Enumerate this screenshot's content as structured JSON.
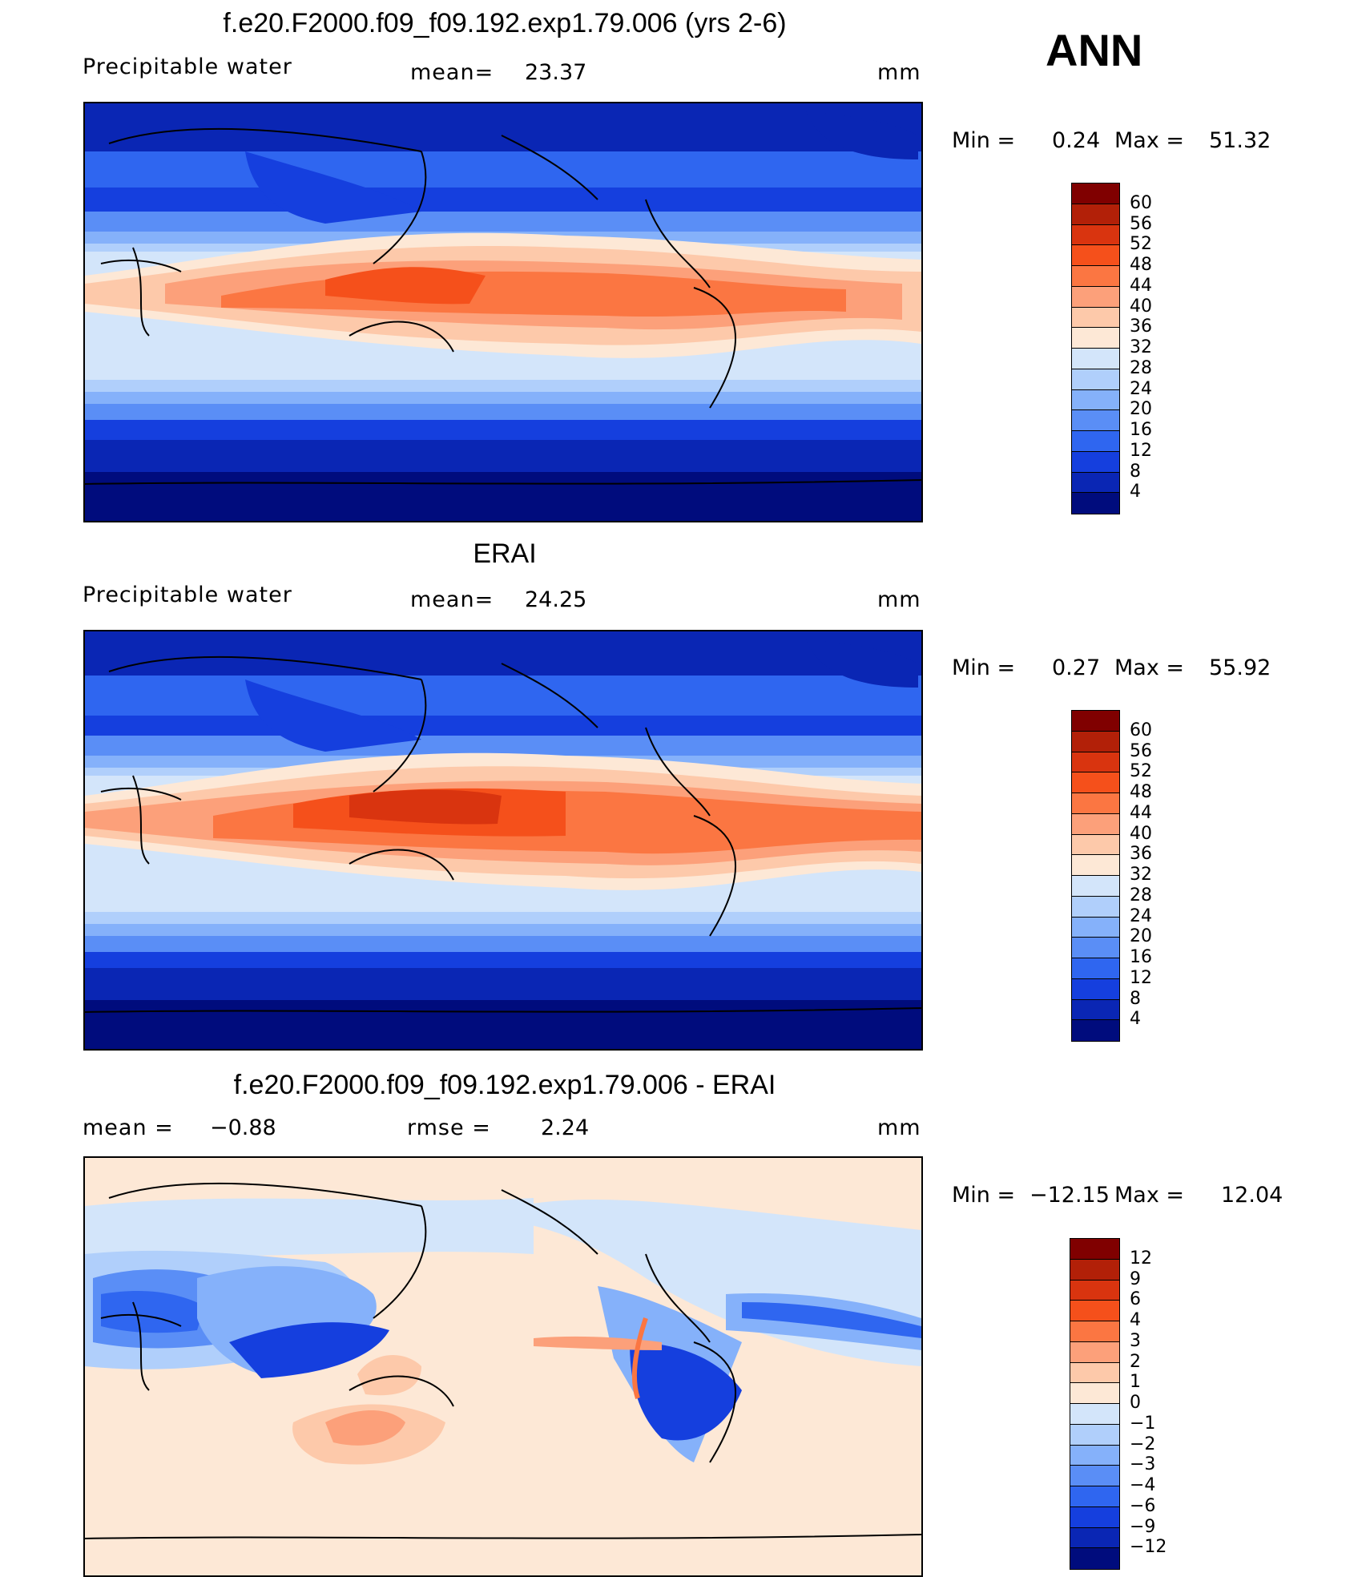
{
  "season": "ANN",
  "panels": [
    {
      "title": "f.e20.F2000.f09_f09.192.exp1.79.006 (yrs 2-6)",
      "left_label": "Precipitable  water",
      "center_label": "mean=",
      "center_value": "23.37",
      "units": "mm",
      "min_label": "Min  =",
      "min_value": "0.24",
      "max_label": "Max  =",
      "max_value": "51.32",
      "colorbar": {
        "ticks": [
          "60",
          "56",
          "52",
          "48",
          "44",
          "40",
          "36",
          "32",
          "28",
          "24",
          "20",
          "16",
          "12",
          "8",
          "4"
        ],
        "colors": [
          "#800000",
          "#b22008",
          "#d9340f",
          "#f5501b",
          "#fb7642",
          "#fca07a",
          "#fdc9aa",
          "#fde8d6",
          "#d3e5fa",
          "#b0cffb",
          "#85b1fa",
          "#5a8ef6",
          "#2f66f0",
          "#153fde",
          "#0a26b4",
          "#000c7d"
        ]
      }
    },
    {
      "title": "ERAI",
      "left_label": "Precipitable  water",
      "center_label": "mean=",
      "center_value": "24.25",
      "units": "mm",
      "min_label": "Min  =",
      "min_value": "0.27",
      "max_label": "Max  =",
      "max_value": "55.92",
      "colorbar": {
        "ticks": [
          "60",
          "56",
          "52",
          "48",
          "44",
          "40",
          "36",
          "32",
          "28",
          "24",
          "20",
          "16",
          "12",
          "8",
          "4"
        ],
        "colors": [
          "#800000",
          "#b22008",
          "#d9340f",
          "#f5501b",
          "#fb7642",
          "#fca07a",
          "#fdc9aa",
          "#fde8d6",
          "#d3e5fa",
          "#b0cffb",
          "#85b1fa",
          "#5a8ef6",
          "#2f66f0",
          "#153fde",
          "#0a26b4",
          "#000c7d"
        ]
      }
    },
    {
      "title": "f.e20.F2000.f09_f09.192.exp1.79.006 - ERAI",
      "left_label": "mean  =",
      "left_value": "−0.88",
      "center_label": "rmse  =",
      "center_value": "2.24",
      "units": "mm",
      "min_label": "Min  =",
      "min_value": "−12.15",
      "max_label": "Max  =",
      "max_value": "12.04",
      "colorbar": {
        "ticks": [
          "12",
          "9",
          "6",
          "4",
          "3",
          "2",
          "1",
          "0",
          "−1",
          "−2",
          "−3",
          "−4",
          "−6",
          "−9",
          "−12"
        ],
        "colors": [
          "#800000",
          "#b22008",
          "#d9340f",
          "#f5501b",
          "#fb7642",
          "#fca07a",
          "#fdc9aa",
          "#fde8d6",
          "#d3e5fa",
          "#b0cffb",
          "#85b1fa",
          "#5a8ef6",
          "#2f66f0",
          "#153fde",
          "#0a26b4",
          "#000c7d"
        ]
      }
    }
  ]
}
